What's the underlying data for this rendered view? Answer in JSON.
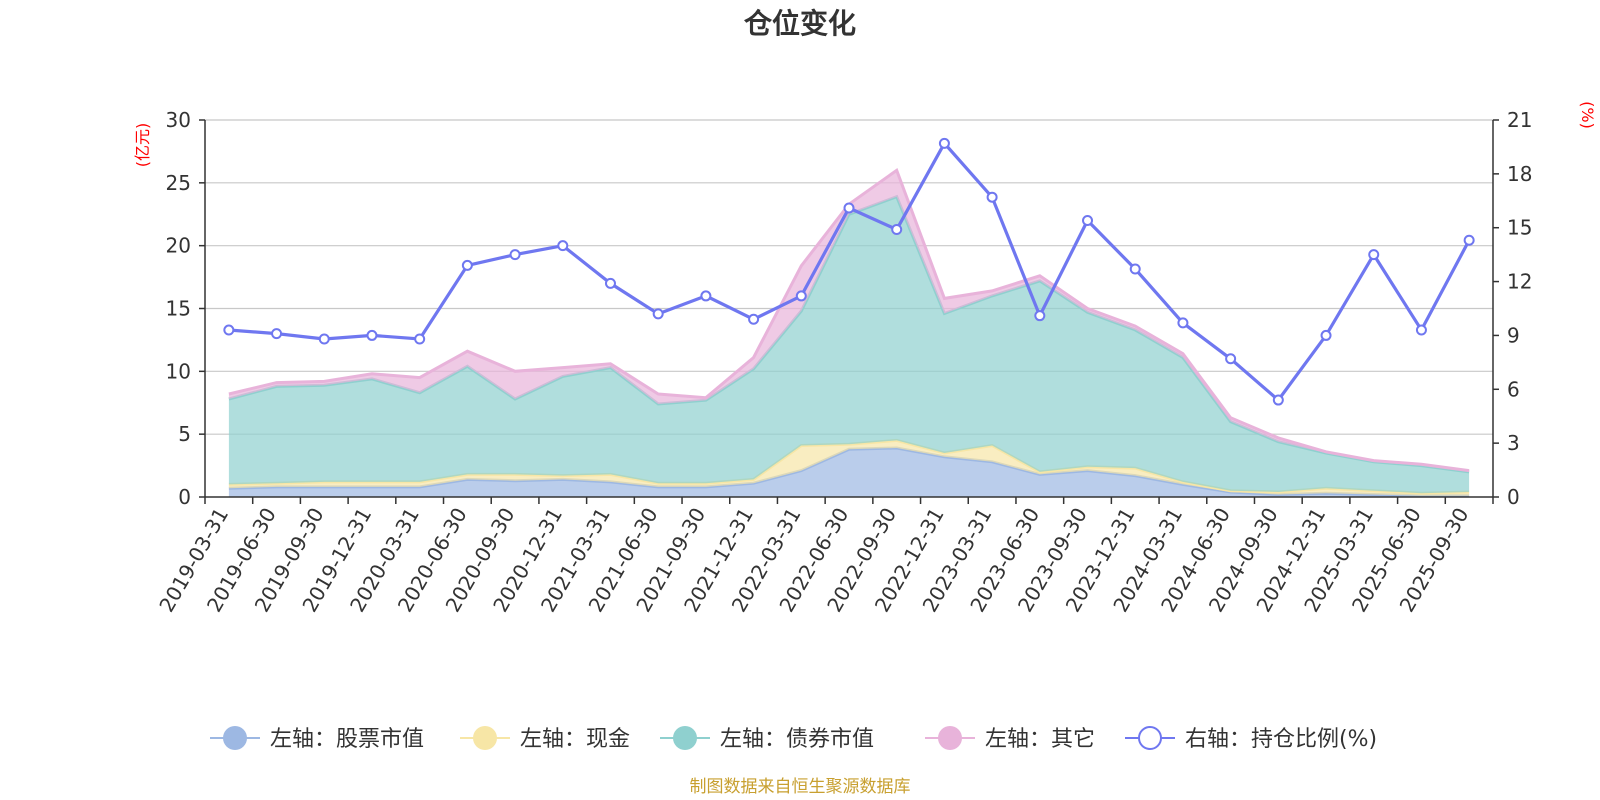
{
  "chart_data": {
    "type": "area",
    "title": "仓位变化",
    "source_note": "制图数据来自恒生聚源数据库",
    "left_axis": {
      "label": "(亿元)",
      "ylim": [
        0,
        30
      ],
      "ticks": [
        0,
        5,
        10,
        15,
        20,
        25,
        30
      ]
    },
    "right_axis": {
      "label": "(%)",
      "ylim": [
        0,
        21
      ],
      "ticks": [
        0,
        3,
        6,
        9,
        12,
        15,
        18,
        21
      ]
    },
    "categories": [
      "2019-03-31",
      "2019-06-30",
      "2019-09-30",
      "2019-12-31",
      "2020-03-31",
      "2020-06-30",
      "2020-09-30",
      "2020-12-31",
      "2021-03-31",
      "2021-06-30",
      "2021-09-30",
      "2021-12-31",
      "2022-03-31",
      "2022-06-30",
      "2022-09-30",
      "2022-12-31",
      "2023-03-31",
      "2023-06-30",
      "2023-09-30",
      "2023-12-31",
      "2024-03-31",
      "2024-06-30",
      "2024-09-30",
      "2024-12-31",
      "2025-03-31",
      "2025-06-30",
      "2025-09-30"
    ],
    "series": [
      {
        "name": "左轴：股票市值",
        "axis": "left",
        "type": "area",
        "color": "#9db8e3",
        "values": [
          0.7,
          0.8,
          0.8,
          0.8,
          0.8,
          1.4,
          1.3,
          1.4,
          1.2,
          0.8,
          0.8,
          1.1,
          2.1,
          3.8,
          3.9,
          3.2,
          2.8,
          1.8,
          2.1,
          1.7,
          1.0,
          0.4,
          0.2,
          0.3,
          0.2,
          0.1,
          0.1
        ]
      },
      {
        "name": "左轴：现金",
        "axis": "left",
        "type": "area",
        "color": "#f7e6a6",
        "values": [
          0.3,
          0.3,
          0.4,
          0.4,
          0.4,
          0.4,
          0.5,
          0.3,
          0.6,
          0.3,
          0.3,
          0.3,
          2.0,
          0.4,
          0.6,
          0.3,
          1.3,
          0.2,
          0.3,
          0.6,
          0.2,
          0.1,
          0.2,
          0.4,
          0.3,
          0.2,
          0.3
        ]
      },
      {
        "name": "左轴：债券市值",
        "axis": "left",
        "type": "area",
        "color": "#8fd0cf",
        "values": [
          6.8,
          7.7,
          7.7,
          8.2,
          7.1,
          8.6,
          6.0,
          7.9,
          8.5,
          6.3,
          6.6,
          8.8,
          10.7,
          18.3,
          19.4,
          11.1,
          11.9,
          15.2,
          12.3,
          11.0,
          9.9,
          5.5,
          4.0,
          2.8,
          2.3,
          2.2,
          1.6
        ]
      },
      {
        "name": "左轴：其它",
        "axis": "left",
        "type": "area",
        "color": "#e8b3da",
        "values": [
          0.4,
          0.3,
          0.3,
          0.4,
          1.2,
          1.2,
          2.2,
          0.7,
          0.3,
          0.8,
          0.2,
          0.9,
          3.6,
          0.8,
          2.1,
          1.2,
          0.4,
          0.4,
          0.3,
          0.3,
          0.3,
          0.3,
          0.3,
          0.1,
          0.1,
          0.1,
          0.1
        ]
      },
      {
        "name": "右轴：持仓比例(%)",
        "axis": "right",
        "type": "line",
        "color": "#6f77f0",
        "values": [
          9.3,
          9.1,
          8.8,
          9.0,
          8.8,
          12.9,
          13.5,
          14.0,
          11.9,
          10.2,
          11.2,
          9.9,
          11.2,
          16.1,
          14.9,
          19.7,
          16.7,
          10.1,
          15.4,
          12.7,
          9.7,
          7.7,
          5.4,
          9.0,
          13.5,
          9.3,
          14.3
        ]
      }
    ]
  }
}
